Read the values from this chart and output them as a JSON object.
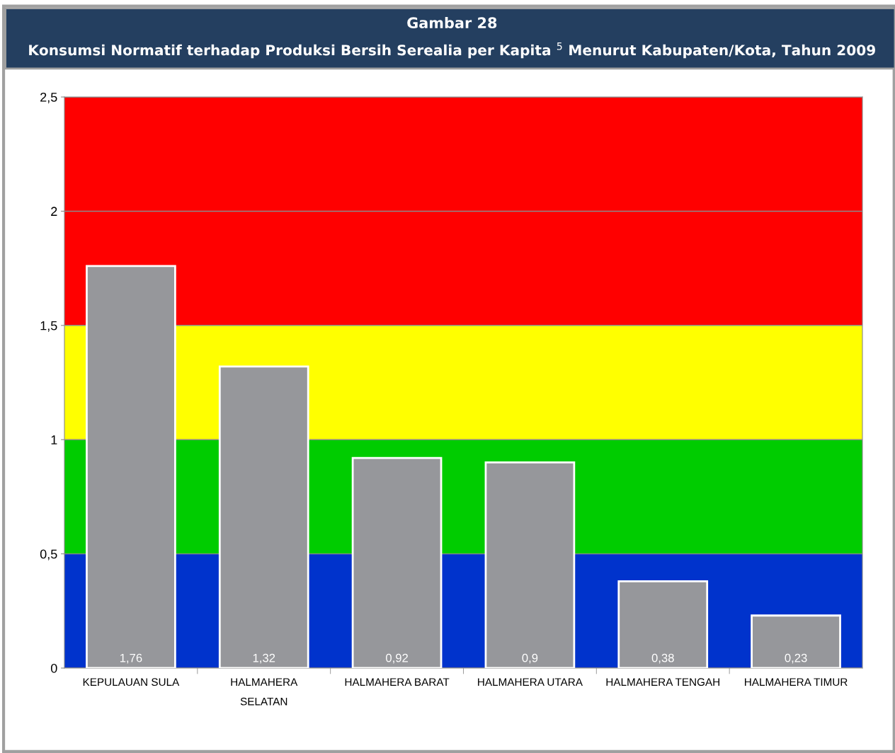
{
  "chart_data": {
    "type": "bar",
    "title": "Gambar 28",
    "subtitle": "Konsumsi Normatif terhadap Produksi Bersih Serealia per Kapita $^{5}$ Menurut Kabupaten/Kota, Tahun 2009",
    "categories": [
      "KEPULAUAN SULA",
      "HALMAHERA\nSELATAN",
      "HALMAHERA BARAT",
      "HALMAHERA UTARA",
      "HALMAHERA TENGAH",
      "HALMAHERA TIMUR"
    ],
    "values": [
      1.76,
      1.32,
      0.92,
      0.9,
      0.38,
      0.23
    ],
    "value_labels": [
      "1,76",
      "1,32",
      "0,92",
      "0,9",
      "0,38",
      "0,23"
    ],
    "color": "#96979b",
    "ylim": [
      0,
      2.5
    ],
    "yticks": [
      0,
      {
        "value": 0.5,
        "label": "0,5"
      },
      1,
      {
        "value": 1.5,
        "label": "1,5"
      },
      2,
      {
        "value": 2.5,
        "label": "2,5"
      }
    ],
    "grid": "y",
    "bands": [
      {
        "axis": "y",
        "from": 0,
        "to": 0.5,
        "color": "#0033cc"
      },
      {
        "axis": "y",
        "from": 0.5,
        "to": 1,
        "color": "#00cc00"
      },
      {
        "axis": "y",
        "from": 1,
        "to": 1.5,
        "color": "#ffff00"
      },
      {
        "axis": "y",
        "from": 1.5,
        "to": 2.5,
        "color": "#ff0000"
      }
    ]
  }
}
